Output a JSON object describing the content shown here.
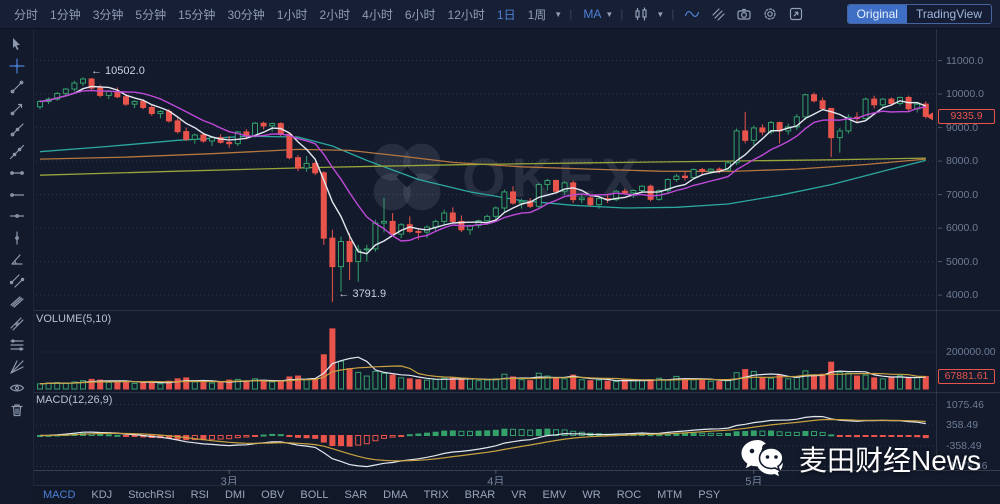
{
  "toolbar": {
    "timeframes": [
      "分时",
      "1分钟",
      "3分钟",
      "5分钟",
      "15分钟",
      "30分钟",
      "1小时",
      "2小时",
      "4小时",
      "6小时",
      "12小时",
      "1日",
      "1周"
    ],
    "active_timeframe": "1日",
    "ma_label": "MA",
    "icons": [
      "chart-type-candle-icon",
      "wave-icon",
      "compare-icon",
      "camera-icon",
      "settings-icon",
      "fullscreen-icon"
    ],
    "mode_buttons": {
      "original": "Original",
      "tradingview": "TradingView"
    }
  },
  "sidebar": {
    "tools": [
      "cursor-icon",
      "crosshair-icon",
      "trend-line-icon",
      "arrow-line-icon",
      "ray-line-icon",
      "extended-line-icon",
      "horizontal-segment-icon",
      "horizontal-ray-icon",
      "price-line-icon",
      "vertical-line-icon",
      "angle-line-icon",
      "parallel-channel-icon",
      "flat-channel-icon",
      "regression-channel-icon",
      "fib-retracement-icon",
      "gann-fan-icon",
      "eye-icon",
      "trash-icon"
    ]
  },
  "chart": {
    "watermark": "OKEX",
    "annotations": {
      "high_label": "← 10502.0",
      "low_label": "← 3791.9"
    },
    "price_axis": [
      "11000.0",
      "10000.0",
      "9000.0",
      "8000.0",
      "7000.0",
      "6000.0",
      "5000.0",
      "4000.0"
    ],
    "last_price": "9335.9",
    "volume": {
      "label": "VOLUME(5,10)",
      "axis_label": "200000.00",
      "last": "67881.61"
    },
    "macd": {
      "label": "MACD(12,26,9)",
      "axis": [
        "1075.46",
        "358.49",
        "-358.49",
        "-1075.46"
      ]
    }
  },
  "tabs": {
    "items": [
      "MACD",
      "KDJ",
      "StochRSI",
      "RSI",
      "DMI",
      "OBV",
      "BOLL",
      "SAR",
      "DMA",
      "TRIX",
      "BRAR",
      "VR",
      "EMV",
      "WR",
      "ROC",
      "MTM",
      "PSY"
    ],
    "active": "MACD"
  },
  "footer": {
    "brand": "麦田财经News",
    "icon": "wechat-icon"
  },
  "colors": {
    "background": "#121a2c",
    "accent_blue": "#4e80d8",
    "candle_up": "#34a06a",
    "candle_down": "#e8544b",
    "ma5": "#e4e7ee",
    "ma10": "#bf49d8",
    "vol_ma5": "#e4e7ee",
    "vol_ma10": "#c9a23f",
    "macd_dif": "#e4e7ee",
    "macd_dea": "#c9a23f",
    "grid": "rgba(255,255,255,0.13)"
  },
  "chart_data": {
    "type": "candlestick+volume+macd",
    "price_axis_values": [
      11000,
      10000,
      9000,
      8000,
      7000,
      6000,
      5000,
      4000
    ],
    "price_high_annotation": 10502.0,
    "price_low_annotation": 3791.9,
    "high_annotation_index": 5,
    "low_annotation_index": 34,
    "month_ticks": [
      {
        "label": "3月",
        "i": 22
      },
      {
        "label": "4月",
        "i": 53
      },
      {
        "label": "5月",
        "i": 83
      }
    ],
    "volume_axis_value": 200000,
    "macd_axis_values": [
      1075.46,
      358.49,
      -358.49,
      -1075.46
    ],
    "candles": [
      [
        9620,
        9820,
        9550,
        9780
      ],
      [
        9780,
        9900,
        9700,
        9850
      ],
      [
        9850,
        10060,
        9800,
        10020
      ],
      [
        10020,
        10180,
        9950,
        10150
      ],
      [
        10150,
        10400,
        10080,
        10330
      ],
      [
        10330,
        10502,
        10250,
        10450
      ],
      [
        10450,
        10480,
        10120,
        10180
      ],
      [
        10180,
        10280,
        9900,
        9960
      ],
      [
        9960,
        10120,
        9850,
        10080
      ],
      [
        10080,
        10200,
        9880,
        9920
      ],
      [
        9920,
        10000,
        9650,
        9700
      ],
      [
        9700,
        9820,
        9580,
        9780
      ],
      [
        9780,
        9850,
        9550,
        9600
      ],
      [
        9600,
        9680,
        9350,
        9420
      ],
      [
        9420,
        9520,
        9280,
        9480
      ],
      [
        9480,
        9550,
        9150,
        9200
      ],
      [
        9200,
        9280,
        8820,
        8880
      ],
      [
        8880,
        9000,
        8600,
        8650
      ],
      [
        8650,
        8820,
        8520,
        8780
      ],
      [
        8780,
        8850,
        8550,
        8600
      ],
      [
        8600,
        8750,
        8450,
        8700
      ],
      [
        8700,
        8800,
        8520,
        8560
      ],
      [
        8560,
        8750,
        8400,
        8520
      ],
      [
        8520,
        8900,
        8450,
        8870
      ],
      [
        8870,
        8950,
        8650,
        8750
      ],
      [
        8750,
        9170,
        8700,
        9130
      ],
      [
        9130,
        9180,
        8950,
        9050
      ],
      [
        9050,
        9150,
        8880,
        9120
      ],
      [
        9120,
        9160,
        8750,
        8800
      ],
      [
        8800,
        8850,
        8050,
        8100
      ],
      [
        8100,
        8180,
        7700,
        7790
      ],
      [
        7790,
        8150,
        7680,
        7930
      ],
      [
        7930,
        7980,
        7580,
        7650
      ],
      [
        7650,
        7700,
        5500,
        5700
      ],
      [
        5700,
        5950,
        3791.9,
        4850
      ],
      [
        4850,
        5750,
        4100,
        5600
      ],
      [
        5600,
        5850,
        4450,
        5000
      ],
      [
        5000,
        5500,
        4400,
        5350
      ],
      [
        5350,
        5500,
        5000,
        5380
      ],
      [
        5380,
        6250,
        5300,
        6150
      ],
      [
        6150,
        6900,
        5870,
        6200
      ],
      [
        6200,
        6450,
        5750,
        5820
      ],
      [
        5820,
        6150,
        5700,
        6100
      ],
      [
        6100,
        6350,
        5850,
        5900
      ],
      [
        5900,
        6000,
        5660,
        5880
      ],
      [
        5880,
        6080,
        5700,
        6030
      ],
      [
        6030,
        6250,
        5900,
        6200
      ],
      [
        6200,
        6550,
        6100,
        6450
      ],
      [
        6450,
        6620,
        6150,
        6200
      ],
      [
        6200,
        6380,
        5880,
        5950
      ],
      [
        5950,
        6100,
        5800,
        6080
      ],
      [
        6080,
        6250,
        6000,
        6220
      ],
      [
        6220,
        6400,
        6100,
        6350
      ],
      [
        6350,
        6650,
        6250,
        6600
      ],
      [
        6600,
        7150,
        6500,
        7080
      ],
      [
        7080,
        7250,
        6700,
        6750
      ],
      [
        6750,
        6880,
        6580,
        6800
      ],
      [
        6800,
        6900,
        6600,
        6650
      ],
      [
        6650,
        7350,
        6600,
        7300
      ],
      [
        7300,
        7470,
        7120,
        7420
      ],
      [
        7420,
        7450,
        7050,
        7100
      ],
      [
        7100,
        7400,
        7000,
        7350
      ],
      [
        7350,
        7420,
        6750,
        6850
      ],
      [
        6850,
        7000,
        6740,
        6900
      ],
      [
        6900,
        7000,
        6650,
        6700
      ],
      [
        6700,
        6930,
        6580,
        6880
      ],
      [
        6880,
        7000,
        6750,
        6850
      ],
      [
        6850,
        7140,
        6800,
        7100
      ],
      [
        7100,
        7180,
        7000,
        7050
      ],
      [
        7050,
        7160,
        6900,
        7120
      ],
      [
        7120,
        7280,
        7050,
        7250
      ],
      [
        7250,
        7300,
        6800,
        6860
      ],
      [
        6860,
        7150,
        6820,
        7120
      ],
      [
        7120,
        7480,
        7050,
        7450
      ],
      [
        7450,
        7620,
        7380,
        7550
      ],
      [
        7550,
        7700,
        7420,
        7510
      ],
      [
        7510,
        7780,
        7460,
        7750
      ],
      [
        7750,
        7800,
        7600,
        7700
      ],
      [
        7700,
        7790,
        7620,
        7760
      ],
      [
        7760,
        7810,
        7640,
        7730
      ],
      [
        7730,
        7990,
        7700,
        7950
      ],
      [
        7950,
        8970,
        7880,
        8900
      ],
      [
        8900,
        9470,
        8530,
        8620
      ],
      [
        8620,
        9060,
        8480,
        8990
      ],
      [
        8990,
        9100,
        8770,
        8870
      ],
      [
        8870,
        9200,
        8800,
        9150
      ],
      [
        9150,
        9180,
        8530,
        8900
      ],
      [
        8900,
        9120,
        8790,
        9020
      ],
      [
        9020,
        9400,
        8930,
        9320
      ],
      [
        9320,
        10010,
        9230,
        9980
      ],
      [
        9980,
        10050,
        9750,
        9800
      ],
      [
        9800,
        9900,
        9520,
        9570
      ],
      [
        9570,
        9590,
        8120,
        8700
      ],
      [
        8700,
        8990,
        8250,
        8900
      ],
      [
        8900,
        9400,
        8820,
        9310
      ],
      [
        9310,
        9460,
        9150,
        9270
      ],
      [
        9270,
        9900,
        9250,
        9850
      ],
      [
        9850,
        9950,
        9570,
        9680
      ],
      [
        9680,
        9880,
        9620,
        9850
      ],
      [
        9850,
        9900,
        9650,
        9720
      ],
      [
        9720,
        9930,
        9660,
        9900
      ],
      [
        9900,
        9950,
        9500,
        9560
      ],
      [
        9560,
        9750,
        9450,
        9700
      ],
      [
        9700,
        9780,
        9270,
        9335.9
      ]
    ],
    "volumes": [
      28000,
      32000,
      35000,
      30000,
      38000,
      45000,
      52000,
      48000,
      36000,
      40000,
      42000,
      30000,
      35000,
      38000,
      28000,
      42000,
      55000,
      60000,
      38000,
      35000,
      32000,
      36000,
      48000,
      52000,
      40000,
      55000,
      42000,
      38000,
      45000,
      65000,
      70000,
      50000,
      55000,
      185000,
      325000,
      150000,
      110000,
      90000,
      70000,
      95000,
      85000,
      75000,
      60000,
      55000,
      50000,
      48000,
      52000,
      58000,
      62000,
      50000,
      55000,
      45000,
      48000,
      55000,
      80000,
      65000,
      50000,
      45000,
      85000,
      70000,
      60000,
      55000,
      75000,
      50000,
      45000,
      48000,
      42000,
      40000,
      52000,
      44000,
      46000,
      50000,
      58000,
      48000,
      68000,
      55000,
      50000,
      52000,
      42000,
      40000,
      45000,
      88000,
      105000,
      95000,
      60000,
      58000,
      75000,
      55000,
      65000,
      98000,
      70000,
      80000,
      145000,
      90000,
      85000,
      70000,
      75000,
      60000,
      55000,
      65000,
      72000,
      58000,
      62000,
      67881.61
    ],
    "ma_overlays": [
      {
        "name": "MA30",
        "color": "#2da89e",
        "points": [
          [
            0,
            8280
          ],
          [
            8,
            8440
          ],
          [
            16,
            8620
          ],
          [
            24,
            8740
          ],
          [
            30,
            8720
          ],
          [
            34,
            8450
          ],
          [
            38,
            8020
          ],
          [
            44,
            7450
          ],
          [
            50,
            7080
          ],
          [
            56,
            6820
          ],
          [
            62,
            6680
          ],
          [
            68,
            6600
          ],
          [
            74,
            6620
          ],
          [
            80,
            6720
          ],
          [
            86,
            6980
          ],
          [
            92,
            7300
          ],
          [
            98,
            7700
          ],
          [
            103,
            8020
          ]
        ]
      },
      {
        "name": "MA60",
        "color": "#b5773f",
        "points": [
          [
            0,
            8060
          ],
          [
            10,
            8120
          ],
          [
            20,
            8220
          ],
          [
            30,
            8350
          ],
          [
            36,
            8320
          ],
          [
            42,
            8150
          ],
          [
            48,
            7960
          ],
          [
            56,
            7830
          ],
          [
            64,
            7760
          ],
          [
            72,
            7700
          ],
          [
            80,
            7690
          ],
          [
            88,
            7760
          ],
          [
            96,
            7900
          ],
          [
            103,
            8060
          ]
        ]
      },
      {
        "name": "MA120",
        "color": "#99a43b",
        "points": [
          [
            0,
            7580
          ],
          [
            16,
            7700
          ],
          [
            32,
            7810
          ],
          [
            48,
            7890
          ],
          [
            64,
            7950
          ],
          [
            80,
            8000
          ],
          [
            92,
            8040
          ],
          [
            103,
            8090
          ]
        ]
      }
    ]
  }
}
